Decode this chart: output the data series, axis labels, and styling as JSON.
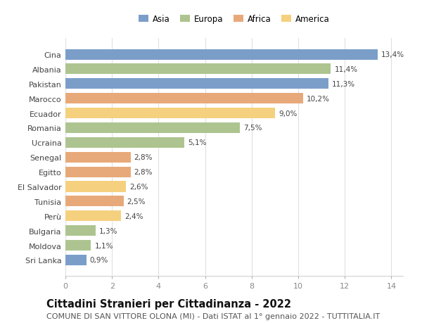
{
  "countries": [
    "Sri Lanka",
    "Moldova",
    "Bulgaria",
    "Perù",
    "Tunisia",
    "El Salvador",
    "Egitto",
    "Senegal",
    "Ucraina",
    "Romania",
    "Ecuador",
    "Marocco",
    "Pakistan",
    "Albania",
    "Cina"
  ],
  "values": [
    0.9,
    1.1,
    1.3,
    2.4,
    2.5,
    2.6,
    2.8,
    2.8,
    5.1,
    7.5,
    9.0,
    10.2,
    11.3,
    11.4,
    13.4
  ],
  "labels": [
    "0,9%",
    "1,1%",
    "1,3%",
    "2,4%",
    "2,5%",
    "2,6%",
    "2,8%",
    "2,8%",
    "5,1%",
    "7,5%",
    "9,0%",
    "10,2%",
    "11,3%",
    "11,4%",
    "13,4%"
  ],
  "colors": [
    "#7b9ec9",
    "#adc490",
    "#adc490",
    "#f5d07e",
    "#e8a97a",
    "#f5d07e",
    "#e8a97a",
    "#e8a97a",
    "#adc490",
    "#adc490",
    "#f5d07e",
    "#e8a97a",
    "#7b9ec9",
    "#adc490",
    "#7b9ec9"
  ],
  "legend_labels": [
    "Asia",
    "Europa",
    "Africa",
    "America"
  ],
  "legend_colors": [
    "#7b9ec9",
    "#adc490",
    "#e8a97a",
    "#f5d07e"
  ],
  "title": "Cittadini Stranieri per Cittadinanza - 2022",
  "subtitle": "COMUNE DI SAN VITTORE OLONA (MI) - Dati ISTAT al 1° gennaio 2022 - TUTTITALIA.IT",
  "xlim": [
    0,
    14.5
  ],
  "xticks": [
    0,
    2,
    4,
    6,
    8,
    10,
    12,
    14
  ],
  "background_color": "#ffffff",
  "bar_height": 0.72,
  "title_fontsize": 10.5,
  "subtitle_fontsize": 8,
  "label_fontsize": 7.5,
  "ytick_fontsize": 8,
  "xtick_fontsize": 8,
  "legend_fontsize": 8.5
}
